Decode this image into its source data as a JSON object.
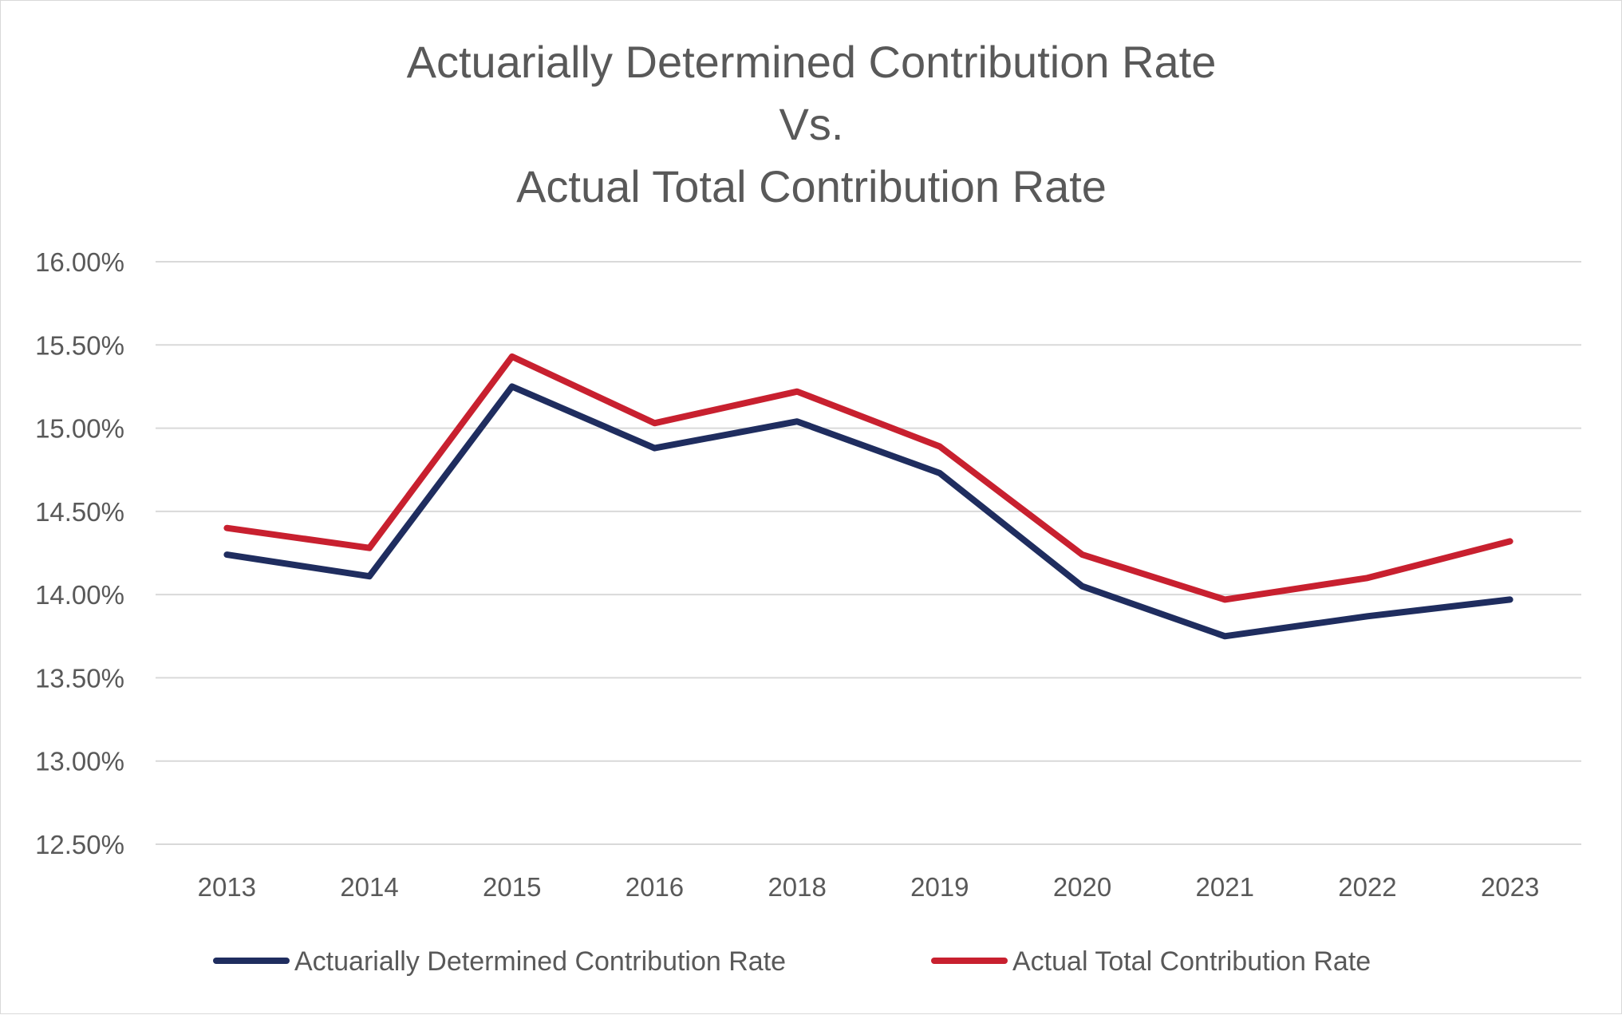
{
  "chart_data": {
    "type": "line",
    "title_lines": [
      "Actuarially Determined Contribution Rate",
      "Vs.",
      "Actual Total Contribution Rate"
    ],
    "xlabel": "",
    "ylabel": "",
    "categories": [
      "2013",
      "2014",
      "2015",
      "2016",
      "2018",
      "2019",
      "2020",
      "2021",
      "2022",
      "2023"
    ],
    "ylim": [
      0.125,
      0.16
    ],
    "y_ticks": [
      0.16,
      0.155,
      0.15,
      0.145,
      0.14,
      0.135,
      0.13,
      0.125
    ],
    "y_tick_labels": [
      "16.00%",
      "15.50%",
      "15.00%",
      "14.50%",
      "14.00%",
      "13.50%",
      "13.00%",
      "12.50%"
    ],
    "grid": true,
    "legend_position": "bottom",
    "series": [
      {
        "name": "Actuarially Determined Contribution Rate",
        "color": "#1f2d5f",
        "values": [
          0.1424,
          0.1411,
          0.1525,
          0.1488,
          0.1504,
          0.1473,
          0.1405,
          0.1375,
          0.1387,
          0.1397
        ]
      },
      {
        "name": "Actual Total Contribution Rate",
        "color": "#c8202f",
        "values": [
          0.144,
          0.1428,
          0.1543,
          0.1503,
          0.1522,
          0.1489,
          0.1424,
          0.1397,
          0.141,
          0.1432
        ]
      }
    ]
  }
}
